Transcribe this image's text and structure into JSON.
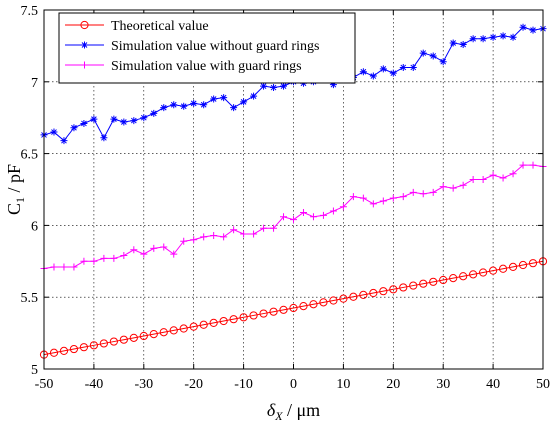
{
  "chart_data": {
    "type": "line",
    "xlabel": "δX / μm",
    "xlabel_main": "δ",
    "xlabel_sub": "X",
    "xlabel_rest": " / μm",
    "ylabel": "C1 / pF",
    "ylabel_main": "C",
    "ylabel_sub": "1",
    "ylabel_rest": " / pF",
    "xlim": [
      -50,
      50
    ],
    "ylim": [
      5,
      7.5
    ],
    "xticks": [
      -50,
      -40,
      -30,
      -20,
      -10,
      0,
      10,
      20,
      30,
      40,
      50
    ],
    "xtick_labels": [
      "-50",
      "-40",
      "-30",
      "-20",
      "-10",
      "0",
      "10",
      "20",
      "30",
      "40",
      "50"
    ],
    "yticks": [
      5,
      5.5,
      6,
      6.5,
      7,
      7.5
    ],
    "ytick_labels": [
      "5",
      "5.5",
      "6",
      "6.5",
      "7",
      "7.5"
    ],
    "grid": true,
    "grid_style": "dotted",
    "legend_position": "top-left",
    "series": [
      {
        "name": "Theoretical value",
        "color": "#ff0000",
        "marker": "circle",
        "x": [
          -50,
          -48,
          -46,
          -44,
          -42,
          -40,
          -38,
          -36,
          -34,
          -32,
          -30,
          -28,
          -26,
          -24,
          -22,
          -20,
          -18,
          -16,
          -14,
          -12,
          -10,
          -8,
          -6,
          -4,
          -2,
          0,
          2,
          4,
          6,
          8,
          10,
          12,
          14,
          16,
          18,
          20,
          22,
          24,
          26,
          28,
          30,
          32,
          34,
          36,
          38,
          40,
          42,
          44,
          46,
          48,
          50
        ],
        "y": [
          5.1,
          5.113,
          5.126,
          5.139,
          5.152,
          5.165,
          5.178,
          5.191,
          5.204,
          5.217,
          5.23,
          5.243,
          5.256,
          5.269,
          5.282,
          5.295,
          5.308,
          5.321,
          5.334,
          5.347,
          5.36,
          5.373,
          5.386,
          5.399,
          5.412,
          5.425,
          5.438,
          5.451,
          5.464,
          5.477,
          5.49,
          5.503,
          5.516,
          5.529,
          5.542,
          5.555,
          5.568,
          5.581,
          5.594,
          5.607,
          5.62,
          5.633,
          5.646,
          5.659,
          5.672,
          5.685,
          5.698,
          5.711,
          5.724,
          5.737,
          5.75
        ]
      },
      {
        "name": "Simulation value without guard rings",
        "color": "#0000ff",
        "marker": "star",
        "x": [
          -50,
          -48,
          -46,
          -44,
          -42,
          -40,
          -38,
          -36,
          -34,
          -32,
          -30,
          -28,
          -26,
          -24,
          -22,
          -20,
          -18,
          -16,
          -14,
          -12,
          -10,
          -8,
          -6,
          -4,
          -2,
          0,
          2,
          4,
          6,
          8,
          10,
          12,
          14,
          16,
          18,
          20,
          22,
          24,
          26,
          28,
          30,
          32,
          34,
          36,
          38,
          40,
          42,
          44,
          46,
          48,
          50
        ],
        "y": [
          6.63,
          6.65,
          6.59,
          6.68,
          6.71,
          6.74,
          6.61,
          6.74,
          6.72,
          6.73,
          6.75,
          6.78,
          6.82,
          6.84,
          6.83,
          6.85,
          6.84,
          6.88,
          6.89,
          6.82,
          6.86,
          6.9,
          6.97,
          6.96,
          6.97,
          7.0,
          6.99,
          7.0,
          7.02,
          6.98,
          7.05,
          7.03,
          7.07,
          7.04,
          7.09,
          7.06,
          7.1,
          7.1,
          7.2,
          7.18,
          7.14,
          7.27,
          7.26,
          7.3,
          7.3,
          7.31,
          7.32,
          7.31,
          7.38,
          7.36,
          7.37
        ]
      },
      {
        "name": "Simulation value with guard rings",
        "color": "#ff00ff",
        "marker": "plus",
        "x": [
          -50,
          -48,
          -46,
          -44,
          -42,
          -40,
          -38,
          -36,
          -34,
          -32,
          -30,
          -28,
          -26,
          -24,
          -22,
          -20,
          -18,
          -16,
          -14,
          -12,
          -10,
          -8,
          -6,
          -4,
          -2,
          0,
          2,
          4,
          6,
          8,
          10,
          12,
          14,
          16,
          18,
          20,
          22,
          24,
          26,
          28,
          30,
          32,
          34,
          36,
          38,
          40,
          42,
          44,
          46,
          48,
          50
        ],
        "y": [
          5.7,
          5.71,
          5.71,
          5.71,
          5.75,
          5.75,
          5.77,
          5.77,
          5.79,
          5.83,
          5.8,
          5.84,
          5.85,
          5.8,
          5.89,
          5.9,
          5.92,
          5.93,
          5.92,
          5.97,
          5.94,
          5.94,
          5.98,
          5.98,
          6.06,
          6.04,
          6.09,
          6.06,
          6.07,
          6.1,
          6.13,
          6.2,
          6.19,
          6.15,
          6.17,
          6.19,
          6.2,
          6.23,
          6.22,
          6.23,
          6.27,
          6.26,
          6.28,
          6.32,
          6.32,
          6.35,
          6.33,
          6.36,
          6.42,
          6.42,
          6.41
        ]
      }
    ]
  }
}
